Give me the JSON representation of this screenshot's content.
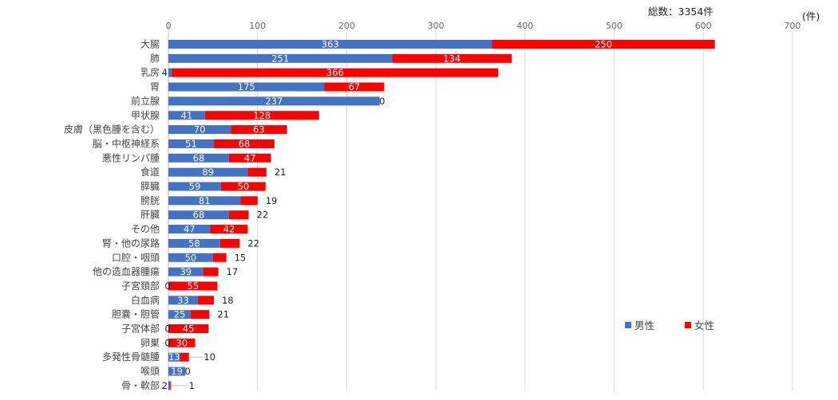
{
  "chart_data": {
    "type": "bar",
    "orientation": "horizontal",
    "stacked": true,
    "total_label": "総数：3354件",
    "unit_label": "(件)",
    "xlim": [
      0,
      700
    ],
    "xticks": [
      0,
      100,
      200,
      300,
      400,
      500,
      600,
      700
    ],
    "grid": true,
    "legend_position": "bottom-right",
    "categories": [
      "大腸",
      "肺",
      "乳房",
      "胃",
      "前立腺",
      "甲状腺",
      "皮膚（黒色腫を含む）",
      "脳・中枢神経系",
      "悪性リンパ腫",
      "食道",
      "膵臓",
      "膀胱",
      "肝臓",
      "その他",
      "腎・他の尿路",
      "口腔・咽頭",
      "他の造血器腫瘍",
      "子宮頚部",
      "白血病",
      "胆嚢・胆管",
      "子宮体部",
      "卵巣",
      "多発性骨髄腫",
      "喉頭",
      "骨・軟部"
    ],
    "series": [
      {
        "name": "男性",
        "color": "#4472C4",
        "values": [
          363,
          251,
          4,
          175,
          237,
          41,
          70,
          51,
          68,
          89,
          59,
          81,
          68,
          47,
          58,
          50,
          39,
          0,
          33,
          25,
          0,
          0,
          13,
          19,
          2
        ]
      },
      {
        "name": "女性",
        "color": "#FF0000",
        "values": [
          250,
          134,
          366,
          67,
          0,
          128,
          63,
          68,
          47,
          21,
          50,
          19,
          22,
          42,
          22,
          15,
          17,
          55,
          18,
          21,
          45,
          30,
          10,
          0,
          1
        ]
      }
    ]
  }
}
